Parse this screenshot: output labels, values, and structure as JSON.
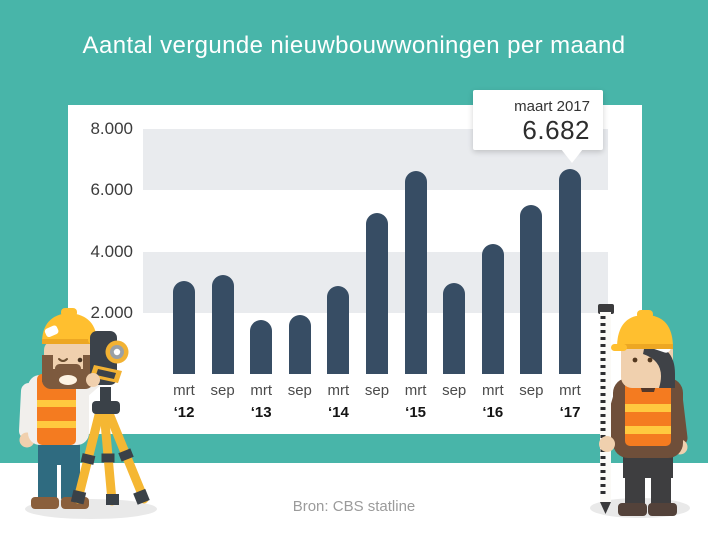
{
  "title": "Aantal vergunde nieuwbouwwoningen per maand",
  "source": "Bron: CBS statline",
  "callout": {
    "label": "maart 2017",
    "value": "6.682"
  },
  "colors": {
    "background": "#48B5A9",
    "panel": "#FFFFFF",
    "band": "#E9EBEE",
    "bar": "#374D64",
    "title_text": "#FFFFFF",
    "axis_text": "#3C3C3C",
    "month_text": "#4B4B4B",
    "year_text": "#141414",
    "source_text": "#9B9B9B"
  },
  "chart_data": {
    "type": "bar",
    "title": "Aantal vergunde nieuwbouwwoningen per maand",
    "categories": [
      {
        "month": "mrt",
        "year": "‘12"
      },
      {
        "month": "sep",
        "year": ""
      },
      {
        "month": "mrt",
        "year": "‘13"
      },
      {
        "month": "sep",
        "year": ""
      },
      {
        "month": "mrt",
        "year": "‘14"
      },
      {
        "month": "sep",
        "year": ""
      },
      {
        "month": "mrt",
        "year": "‘15"
      },
      {
        "month": "sep",
        "year": ""
      },
      {
        "month": "mrt",
        "year": "‘16"
      },
      {
        "month": "sep",
        "year": ""
      },
      {
        "month": "mrt",
        "year": "‘17"
      }
    ],
    "values": [
      3040,
      3230,
      1760,
      1930,
      2870,
      5260,
      6630,
      2960,
      4240,
      5520,
      6682
    ],
    "highlight": {
      "category_index": 10,
      "label": "maart 2017",
      "value": 6682,
      "value_display": "6.682"
    },
    "y_ticks": [
      {
        "value": 8000,
        "label": "8.000"
      },
      {
        "value": 6000,
        "label": "6.000"
      },
      {
        "value": 4000,
        "label": "4.000"
      },
      {
        "value": 2000,
        "label": "2.000"
      }
    ],
    "ylim": [
      0,
      8000
    ],
    "xlabel": "",
    "ylabel": "",
    "legend": "none",
    "grid": "alternating horizontal bands every 2000, no gridlines"
  }
}
